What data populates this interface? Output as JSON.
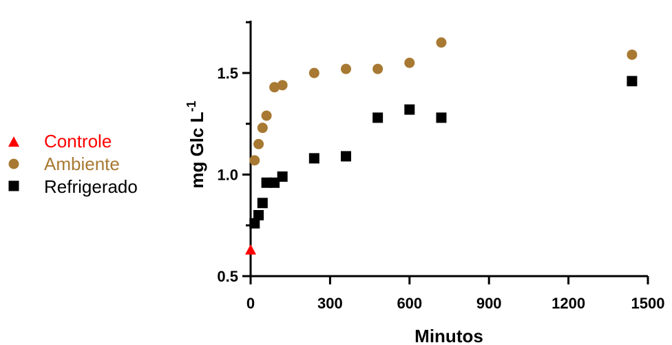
{
  "chart_data": {
    "type": "scatter",
    "xlabel": "Minutos",
    "ylabel_main": "mg Glc L",
    "ylabel_superscript": "-1",
    "xlim": [
      0,
      1500
    ],
    "ylim": [
      0.5,
      1.75
    ],
    "x_ticks": [
      0,
      300,
      600,
      900,
      1200,
      1500
    ],
    "y_ticks": [
      0.5,
      1.0,
      1.5
    ],
    "y_tick_labels": [
      "0.5",
      "1.0",
      "1.5"
    ],
    "grid": false,
    "legend_position": "left",
    "series": [
      {
        "name": "Controle",
        "marker": "triangle",
        "color": "#ff0000",
        "points": [
          [
            0,
            0.63
          ]
        ]
      },
      {
        "name": "Ambiente",
        "marker": "circle",
        "color": "#a87932",
        "points": [
          [
            15,
            1.07
          ],
          [
            30,
            1.15
          ],
          [
            45,
            1.23
          ],
          [
            60,
            1.29
          ],
          [
            90,
            1.43
          ],
          [
            120,
            1.44
          ],
          [
            240,
            1.5
          ],
          [
            360,
            1.52
          ],
          [
            480,
            1.52
          ],
          [
            600,
            1.55
          ],
          [
            720,
            1.65
          ],
          [
            1440,
            1.59
          ]
        ]
      },
      {
        "name": "Refrigerado",
        "marker": "square",
        "color": "#000000",
        "points": [
          [
            15,
            0.76
          ],
          [
            30,
            0.8
          ],
          [
            45,
            0.86
          ],
          [
            60,
            0.96
          ],
          [
            90,
            0.96
          ],
          [
            120,
            0.99
          ],
          [
            240,
            1.08
          ],
          [
            360,
            1.09
          ],
          [
            480,
            1.28
          ],
          [
            600,
            1.32
          ],
          [
            720,
            1.28
          ],
          [
            1440,
            1.46
          ]
        ]
      }
    ]
  }
}
